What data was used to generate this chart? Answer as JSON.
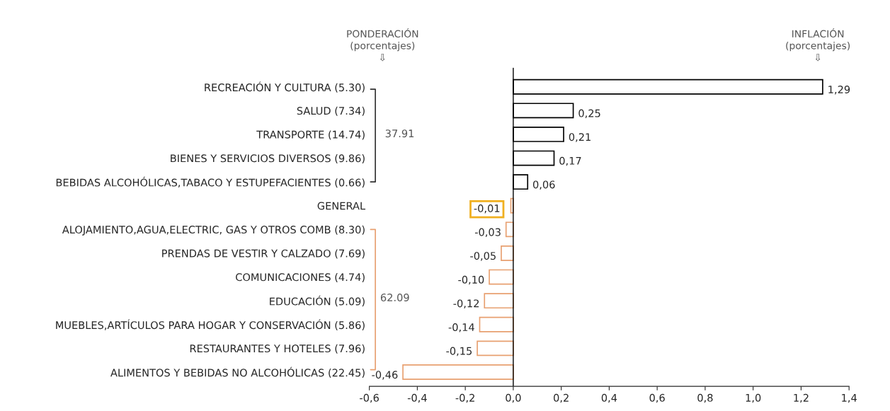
{
  "chart_data": {
    "type": "bar",
    "orientation": "horizontal",
    "categories": [
      "RECREACIÓN Y CULTURA (5.30)",
      "SALUD (7.34)",
      "TRANSPORTE (14.74)",
      "BIENES Y SERVICIOS DIVERSOS (9.86)",
      "BEBIDAS ALCOHÓLICAS,TABACO Y ESTUPEFACIENTES (0.66)",
      "GENERAL",
      "ALOJAMIENTO,AGUA,ELECTRIC, GAS Y OTROS COMB (8.30)",
      "PRENDAS DE VESTIR Y CALZADO (7.69)",
      "COMUNICACIONES (4.74)",
      "EDUCACIÓN (5.09)",
      "MUEBLES,ARTÍCULOS PARA HOGAR Y CONSERVACIÓN (5.86)",
      "RESTAURANTES Y HOTELES (7.96)",
      "ALIMENTOS Y BEBIDAS NO ALCOHÓLICAS (22.45)"
    ],
    "values": [
      1.29,
      0.25,
      0.21,
      0.17,
      0.06,
      -0.01,
      -0.03,
      -0.05,
      -0.1,
      -0.12,
      -0.14,
      -0.15,
      -0.46
    ],
    "value_labels": [
      "1,29",
      "0,25",
      "0,21",
      "0,17",
      "0,06",
      "-0,01",
      "-0,03",
      "-0,05",
      "-0,10",
      "-0,12",
      "-0,14",
      "-0,15",
      "-0,46"
    ],
    "colors": [
      "#000000",
      "#000000",
      "#000000",
      "#000000",
      "#000000",
      "#e8a070",
      "#e8a070",
      "#e8a070",
      "#e8a070",
      "#e8a070",
      "#e8a070",
      "#e8a070",
      "#e8a070"
    ],
    "xlim": [
      -0.6,
      1.4
    ],
    "xticks": [
      {
        "value": -0.6,
        "label": "-0,6"
      },
      {
        "value": -0.4,
        "label": "-0,4"
      },
      {
        "value": -0.2,
        "label": "-0,2"
      },
      {
        "value": 0.0,
        "label": "0,0"
      },
      {
        "value": 0.2,
        "label": "0,2"
      },
      {
        "value": 0.4,
        "label": "0,4"
      },
      {
        "value": 0.6,
        "label": "0,6"
      },
      {
        "value": 0.8,
        "label": "0,8"
      },
      {
        "value": 1.0,
        "label": "1,0"
      },
      {
        "value": 1.2,
        "label": "1,2"
      },
      {
        "value": 1.4,
        "label": "1,4"
      }
    ],
    "ref_lines": [
      {
        "axis": "x",
        "value": 0,
        "color": "#000000"
      }
    ],
    "annotations": [
      "PONDERACIÓN\n(porcentajes)\n⇩",
      "INFLACIÓN\n(porcentajes)\n⇩",
      "37.91",
      "62.09"
    ]
  }
}
